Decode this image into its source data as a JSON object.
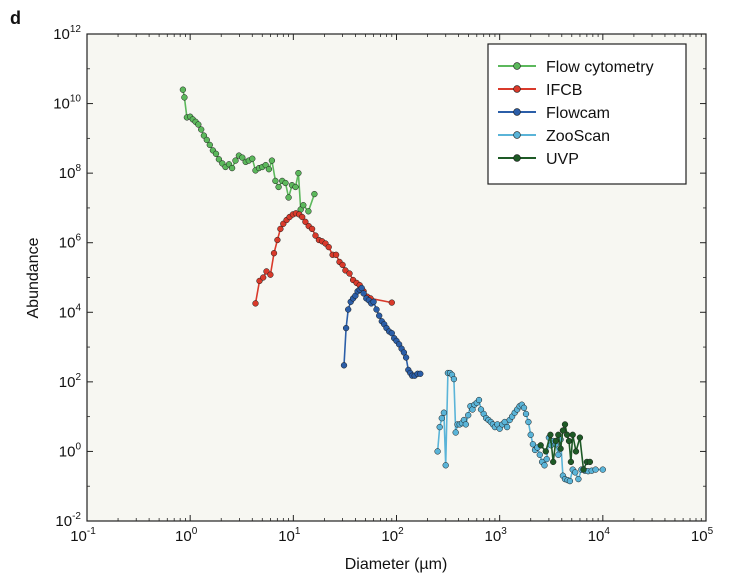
{
  "panel_label": "d",
  "colors": {
    "plot_background": "#f7f7f2",
    "axis": "#222222"
  },
  "chart_data": {
    "type": "line",
    "title": "",
    "xlabel": "Diameter (µm)",
    "ylabel": "Abundance",
    "x_scale": "log",
    "y_scale": "log",
    "xlim": [
      0.1,
      100000
    ],
    "ylim": [
      0.01,
      1000000000000
    ],
    "x_ticks": [
      {
        "base": "10",
        "exp": "-1",
        "value": 0.1
      },
      {
        "base": "10",
        "exp": "0",
        "value": 1
      },
      {
        "base": "10",
        "exp": "1",
        "value": 10
      },
      {
        "base": "10",
        "exp": "2",
        "value": 100
      },
      {
        "base": "10",
        "exp": "3",
        "value": 1000
      },
      {
        "base": "10",
        "exp": "4",
        "value": 10000
      },
      {
        "base": "10",
        "exp": "5",
        "value": 100000
      }
    ],
    "y_ticks": [
      {
        "base": "10",
        "exp": "-2",
        "value": 0.01
      },
      {
        "base": "10",
        "exp": "0",
        "value": 1
      },
      {
        "base": "10",
        "exp": "2",
        "value": 100
      },
      {
        "base": "10",
        "exp": "4",
        "value": 10000
      },
      {
        "base": "10",
        "exp": "6",
        "value": 1000000
      },
      {
        "base": "10",
        "exp": "8",
        "value": 100000000
      },
      {
        "base": "10",
        "exp": "10",
        "value": 10000000000
      },
      {
        "base": "10",
        "exp": "12",
        "value": 1000000000000
      }
    ],
    "grid": false,
    "legend_position": "top-right",
    "series": [
      {
        "name": "Flow cytometry",
        "color": "#5cb85c",
        "points": [
          [
            0.85,
            25000000000.0
          ],
          [
            0.88,
            15000000000.0
          ],
          [
            0.93,
            4000000000.0
          ],
          [
            1.0,
            4200000000.0
          ],
          [
            1.06,
            3500000000.0
          ],
          [
            1.13,
            3000000000.0
          ],
          [
            1.2,
            2500000000.0
          ],
          [
            1.28,
            1800000000.0
          ],
          [
            1.36,
            1200000000.0
          ],
          [
            1.45,
            900000000.0
          ],
          [
            1.55,
            650000000.0
          ],
          [
            1.66,
            450000000.0
          ],
          [
            1.78,
            360000000.0
          ],
          [
            1.9,
            250000000.0
          ],
          [
            2.05,
            190000000.0
          ],
          [
            2.2,
            150000000.0
          ],
          [
            2.38,
            180000000.0
          ],
          [
            2.55,
            140000000.0
          ],
          [
            2.75,
            230000000.0
          ],
          [
            2.97,
            320000000.0
          ],
          [
            3.2,
            280000000.0
          ],
          [
            3.45,
            210000000.0
          ],
          [
            3.7,
            230000000.0
          ],
          [
            4.0,
            260000000.0
          ],
          [
            4.3,
            120000000.0
          ],
          [
            4.65,
            140000000.0
          ],
          [
            5.0,
            150000000.0
          ],
          [
            5.4,
            170000000.0
          ],
          [
            5.8,
            130000000.0
          ],
          [
            6.2,
            230000000.0
          ],
          [
            6.7,
            60000000.0
          ],
          [
            7.2,
            40000000.0
          ],
          [
            7.8,
            60000000.0
          ],
          [
            8.4,
            52000000.0
          ],
          [
            9.0,
            20000000.0
          ],
          [
            9.7,
            45000000.0
          ],
          [
            10.5,
            40000000.0
          ],
          [
            11.2,
            100000000.0
          ],
          [
            11.8,
            9000000.0
          ],
          [
            12.5,
            12000000.0
          ],
          [
            14.0,
            8000000.0
          ],
          [
            16.0,
            25000000.0
          ]
        ]
      },
      {
        "name": "IFCB",
        "color": "#d93a2b",
        "points": [
          [
            4.3,
            18000.0
          ],
          [
            4.7,
            80000.0
          ],
          [
            5.1,
            100000.0
          ],
          [
            5.5,
            150000.0
          ],
          [
            6.0,
            120000.0
          ],
          [
            6.5,
            500000.0
          ],
          [
            7.0,
            1200000.0
          ],
          [
            7.5,
            2500000.0
          ],
          [
            8.0,
            3500000.0
          ],
          [
            8.6,
            4500000.0
          ],
          [
            9.2,
            5500000.0
          ],
          [
            9.9,
            6500000.0
          ],
          [
            10.6,
            7000000.0
          ],
          [
            11.4,
            6500000.0
          ],
          [
            12.2,
            5500000.0
          ],
          [
            13.1,
            4000000.0
          ],
          [
            14.1,
            3000000.0
          ],
          [
            15.2,
            2500000.0
          ],
          [
            16.4,
            1600000.0
          ],
          [
            17.7,
            1200000.0
          ],
          [
            19.0,
            1100000.0
          ],
          [
            20.5,
            950000.0
          ],
          [
            22.0,
            750000.0
          ],
          [
            24.0,
            450000.0
          ],
          [
            26.0,
            450000.0
          ],
          [
            28.0,
            280000.0
          ],
          [
            30.0,
            230000.0
          ],
          [
            32.0,
            160000.0
          ],
          [
            35.0,
            130000.0
          ],
          [
            38.0,
            85000.0
          ],
          [
            41.0,
            70000.0
          ],
          [
            44.0,
            60000.0
          ],
          [
            48.0,
            40000.0
          ],
          [
            52.0,
            28000.0
          ],
          [
            56.0,
            25000.0
          ],
          [
            90.0,
            19000.0
          ]
        ]
      },
      {
        "name": "Flowcam",
        "color": "#2b5ea8",
        "points": [
          [
            31.0,
            300.0
          ],
          [
            32.5,
            3500.0
          ],
          [
            34.0,
            12000.0
          ],
          [
            36.0,
            20000.0
          ],
          [
            38.0,
            25000.0
          ],
          [
            40.0,
            30000.0
          ],
          [
            42.0,
            40000.0
          ],
          [
            44.0,
            45000.0
          ],
          [
            46.0,
            50000.0
          ],
          [
            48.0,
            35000.0
          ],
          [
            51.0,
            25000.0
          ],
          [
            54.0,
            22000.0
          ],
          [
            57.0,
            18000.0
          ],
          [
            60.0,
            20000.0
          ],
          [
            64.0,
            12000.0
          ],
          [
            68.0,
            8000.0
          ],
          [
            72.0,
            5500.0
          ],
          [
            76.0,
            4500.0
          ],
          [
            80.0,
            3500.0
          ],
          [
            85.0,
            2800.0
          ],
          [
            90.0,
            2500.0
          ],
          [
            95.0,
            1800.0
          ],
          [
            100.0,
            1500.0
          ],
          [
            106.0,
            1200.0
          ],
          [
            112.0,
            900.0
          ],
          [
            118.0,
            700.0
          ],
          [
            124.0,
            500.0
          ],
          [
            130.0,
            220.0
          ],
          [
            136.0,
            180.0
          ],
          [
            142.0,
            150.0
          ],
          [
            150.0,
            150.0
          ],
          [
            160.0,
            170.0
          ],
          [
            170.0,
            170.0
          ]
        ]
      },
      {
        "name": "ZooScan",
        "color": "#5ab4d8",
        "points": [
          [
            250.0,
            1.0
          ],
          [
            262.0,
            5.0
          ],
          [
            275.0,
            9.0
          ],
          [
            288.0,
            13.0
          ],
          [
            300.0,
            0.4
          ],
          [
            315.0,
            180.0
          ],
          [
            330.0,
            180.0
          ],
          [
            345.0,
            160.0
          ],
          [
            360.0,
            120.0
          ],
          [
            375.0,
            3.5
          ],
          [
            390.0,
            6.0
          ],
          [
            410.0,
            6.0
          ],
          [
            430.0,
            6.5
          ],
          [
            450.0,
            8.0
          ],
          [
            470.0,
            6.0
          ],
          [
            495.0,
            11.0
          ],
          [
            520.0,
            20.0
          ],
          [
            545.0,
            16.0
          ],
          [
            570.0,
            22.0
          ],
          [
            600.0,
            25.0
          ],
          [
            630.0,
            30.0
          ],
          [
            660.0,
            16.0
          ],
          [
            700.0,
            12.0
          ],
          [
            740.0,
            9.0
          ],
          [
            780.0,
            8.0
          ],
          [
            820.0,
            7.0
          ],
          [
            860.0,
            6.0
          ],
          [
            900.0,
            5.0
          ],
          [
            950.0,
            6.0
          ],
          [
            1000.0,
            4.5
          ],
          [
            1060.0,
            6.0
          ],
          [
            1120.0,
            7.0
          ],
          [
            1180.0,
            5.0
          ],
          [
            1250.0,
            8.0
          ],
          [
            1320.0,
            10.0
          ],
          [
            1400.0,
            13.0
          ],
          [
            1480.0,
            16.0
          ],
          [
            1560.0,
            20.0
          ],
          [
            1640.0,
            22.0
          ],
          [
            1720.0,
            18.0
          ],
          [
            1800.0,
            12.0
          ],
          [
            1900.0,
            7.0
          ],
          [
            2000.0,
            3.0
          ],
          [
            2100.0,
            1.6
          ],
          [
            2200.0,
            1.1
          ],
          [
            2320.0,
            1.3
          ],
          [
            2450.0,
            0.8
          ],
          [
            2580.0,
            0.5
          ],
          [
            2720.0,
            0.4
          ],
          [
            2860.0,
            0.6
          ],
          [
            3000.0,
            2.5
          ],
          [
            3150.0,
            1.5
          ],
          [
            3300.0,
            2.0
          ],
          [
            3500.0,
            1.6
          ],
          [
            3700.0,
            0.8
          ],
          [
            3900.0,
            2.2
          ],
          [
            4100.0,
            0.2
          ],
          [
            4300.0,
            0.16
          ],
          [
            4550.0,
            0.15
          ],
          [
            4800.0,
            0.14
          ],
          [
            5100.0,
            0.3
          ],
          [
            5400.0,
            0.25
          ],
          [
            5800.0,
            0.16
          ],
          [
            6200.0,
            0.3
          ],
          [
            6700.0,
            0.28
          ],
          [
            7200.0,
            0.27
          ],
          [
            7800.0,
            0.28
          ],
          [
            8500.0,
            0.3
          ],
          [
            10000.0,
            0.3
          ]
        ]
      },
      {
        "name": "UVP",
        "color": "#1e5a26",
        "points": [
          [
            2500.0,
            1.5
          ],
          [
            2800.0,
            1.0
          ],
          [
            3100.0,
            3.0
          ],
          [
            3300.0,
            0.5
          ],
          [
            3500.0,
            2.0
          ],
          [
            3700.0,
            3.0
          ],
          [
            3900.0,
            1.2
          ],
          [
            4100.0,
            4.0
          ],
          [
            4300.0,
            6.0
          ],
          [
            4500.0,
            3.0
          ],
          [
            4700.0,
            2.0
          ],
          [
            4900.0,
            0.5
          ],
          [
            5100.0,
            3.0
          ],
          [
            5500.0,
            1.0
          ],
          [
            6000.0,
            2.5
          ],
          [
            6500.0,
            0.3
          ],
          [
            7000.0,
            0.5
          ],
          [
            7500.0,
            0.5
          ]
        ]
      }
    ]
  }
}
